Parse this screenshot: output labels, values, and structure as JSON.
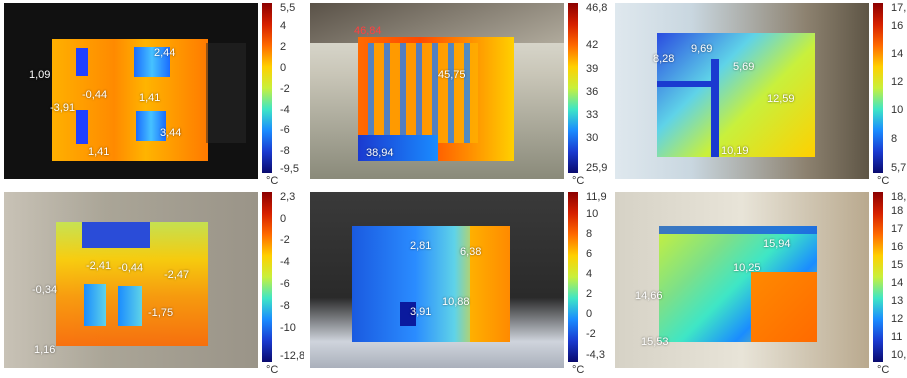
{
  "panels": [
    {
      "scale_labels": [
        "5,5",
        "4",
        "2",
        "0",
        "-2",
        "-4",
        "-6",
        "-8",
        "-9,5"
      ],
      "unit": "°C",
      "points": [
        "2,44",
        "1,09",
        "-0,44",
        "1,41",
        "-3,91",
        "3,44",
        "1,41"
      ]
    },
    {
      "scale_labels": [
        "46,8",
        "42",
        "39",
        "36",
        "33",
        "30",
        "25,9"
      ],
      "unit": "°C",
      "points": [
        "46,84",
        "45,75",
        "38,94"
      ]
    },
    {
      "scale_labels": [
        "17,",
        "16",
        "14",
        "12",
        "10",
        "8",
        "5,7"
      ],
      "unit": "°C",
      "points": [
        "9,69",
        "8,28",
        "5,69",
        "12,59",
        "10,19"
      ]
    },
    {
      "scale_labels": [
        "2,3",
        "0",
        "-2",
        "-4",
        "-6",
        "-8",
        "-10",
        "-12,8"
      ],
      "unit": "°C",
      "points": [
        "-2,41",
        "-0,44",
        "-2,47",
        "-0,34",
        "-1,75",
        "1,16"
      ]
    },
    {
      "scale_labels": [
        "11,9",
        "10",
        "8",
        "6",
        "4",
        "2",
        "0",
        "-2",
        "-4,3"
      ],
      "unit": "°C",
      "points": [
        "2,81",
        "6,38",
        "10,88",
        "3,91"
      ]
    },
    {
      "scale_labels": [
        "18,",
        "18",
        "17",
        "16",
        "15",
        "14",
        "13",
        "12",
        "11",
        "10,"
      ],
      "unit": "°C",
      "points": [
        "15,94",
        "10,25",
        "14,66",
        "15,53"
      ]
    }
  ],
  "colors": {
    "scale_top": "#8b0000",
    "scale_mid": "#ffd000",
    "scale_bottom": "#0a0a6e"
  }
}
